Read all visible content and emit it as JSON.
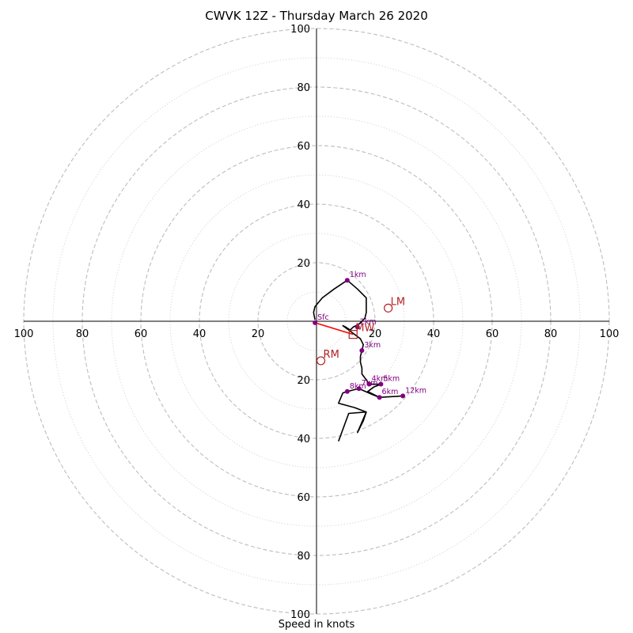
{
  "chart_data": {
    "type": "hodograph",
    "title": "CWVK 12Z - Thursday March 26 2020",
    "xlabel": "Speed in knots",
    "speed_range": [
      0,
      100
    ],
    "axis_ticks": [
      20,
      40,
      60,
      80,
      100
    ],
    "grid": true,
    "colors": {
      "axis": "#000000",
      "ring_major": "#bdbdbd",
      "ring_minor": "#d0d0d0",
      "hodo_line": "#000000",
      "height_point": "#800080",
      "motion": "#b22222",
      "mean_wind_vector": "#ff0000"
    },
    "hodograph_trace": [
      [
        -0.5,
        0.5
      ],
      [
        -1,
        3
      ],
      [
        -0.5,
        5
      ],
      [
        2,
        8
      ],
      [
        6,
        11
      ],
      [
        10.5,
        14
      ],
      [
        14,
        11
      ],
      [
        17,
        8
      ],
      [
        17,
        6
      ],
      [
        17,
        3
      ],
      [
        16.5,
        1
      ],
      [
        14.5,
        -1
      ],
      [
        12.5,
        -2
      ],
      [
        11.5,
        -3
      ],
      [
        10,
        -2
      ],
      [
        9,
        -1.5
      ],
      [
        11,
        -3
      ],
      [
        13,
        -4.5
      ],
      [
        15,
        -6
      ],
      [
        16,
        -8
      ],
      [
        15.5,
        -10
      ],
      [
        15,
        -12
      ],
      [
        15,
        -14
      ],
      [
        15.5,
        -16
      ],
      [
        15.5,
        -18
      ],
      [
        17,
        -20
      ],
      [
        18,
        -21.5
      ],
      [
        22,
        -21.5
      ],
      [
        19.5,
        -22.5
      ],
      [
        17.5,
        -24
      ],
      [
        19.5,
        -25
      ],
      [
        21.5,
        -26
      ],
      [
        29.5,
        -25.5
      ],
      [
        21.5,
        -26
      ],
      [
        19,
        -25
      ],
      [
        14.5,
        -23
      ],
      [
        12.5,
        -23.5
      ],
      [
        10.5,
        -24
      ],
      [
        9,
        -24.5
      ],
      [
        7.5,
        -28
      ],
      [
        13,
        -29.5
      ],
      [
        17,
        -31
      ],
      [
        16,
        -34
      ],
      [
        14,
        -38
      ],
      [
        17,
        -31
      ],
      [
        11,
        -31.5
      ],
      [
        7.5,
        -41
      ]
    ],
    "height_points": [
      {
        "label": "Sfc",
        "u": -0.5,
        "v": -0.5
      },
      {
        "label": "1km",
        "u": 10.5,
        "v": 14
      },
      {
        "label": "2km",
        "u": 14,
        "v": -2
      },
      {
        "label": "3km",
        "u": 15.5,
        "v": -10
      },
      {
        "label": "4km",
        "u": 18,
        "v": -21.5
      },
      {
        "label": "5km",
        "u": 22,
        "v": -21.5
      },
      {
        "label": "6km",
        "u": 21.5,
        "v": -26
      },
      {
        "label": "7km",
        "u": 14.5,
        "v": -23
      },
      {
        "label": "8km",
        "u": 10.5,
        "v": -24
      },
      {
        "label": "12km",
        "u": 29.5,
        "v": -25.5
      }
    ],
    "storm_motion": [
      {
        "label": "LM",
        "u": 24.5,
        "v": 4.5
      },
      {
        "label": "RM",
        "u": 1.5,
        "v": -13.5
      },
      {
        "label": "MW",
        "u": 12.5,
        "v": -4.5
      }
    ],
    "mean_wind_vector": {
      "from": [
        -0.5,
        -0.5
      ],
      "to": [
        12.5,
        -4.5
      ]
    }
  }
}
